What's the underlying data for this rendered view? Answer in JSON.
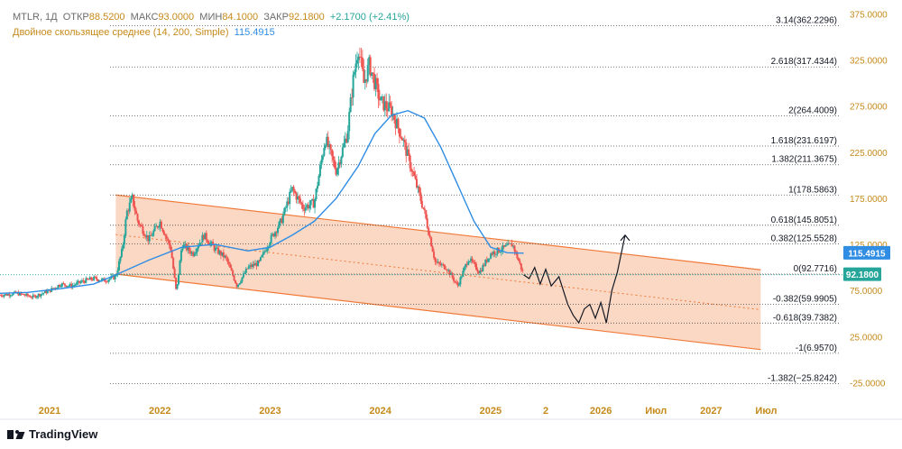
{
  "header": {
    "symbol": "MTLR, 1Д",
    "open_label": "ОТКР",
    "open": "88.5200",
    "high_label": "МАКС",
    "high": "93.0000",
    "low_label": "МИН",
    "low": "84.1000",
    "close_label": "ЗАКР",
    "close": "92.1800",
    "change": "+2.1700 (+2.41%)",
    "indicator": "Двойное скользящее среднее (14, 200, Simple)",
    "indicator_value": "115.4915"
  },
  "brand": "TradingView",
  "colors": {
    "up": "#26a69a",
    "down": "#ef5350",
    "ma": "#2f8de4",
    "channel_fill": "#f8cbb0",
    "channel_line": "#f07a3a",
    "axis_text": "#c58a1a",
    "price_badge": "#26a69a",
    "ma_badge": "#2f8de4"
  },
  "chart_data": {
    "type": "line",
    "title": "MTLR, 1Д",
    "ylim": [
      -45,
      390
    ],
    "y_ticks": [
      "375.0000",
      "325.0000",
      "275.0000",
      "225.0000",
      "175.0000",
      "125.0000",
      "75.0000",
      "25.0000",
      "-25.0000"
    ],
    "y_tick_values": [
      375,
      325,
      275,
      225,
      175,
      125,
      75,
      25,
      -25
    ],
    "x_ticks": [
      "2021",
      "2022",
      "2023",
      "2024",
      "2025",
      "2",
      "2026",
      "Июл",
      "2027",
      "Июл"
    ],
    "x_tick_years": [
      2021.0,
      2022.0,
      2023.0,
      2024.0,
      2025.0,
      2025.5,
      2026.0,
      2026.5,
      2027.0,
      2027.5
    ],
    "xlim": [
      2020.55,
      2028.2
    ],
    "fib_levels": [
      {
        "label": "3.14(362.2296)",
        "value": 362.2296
      },
      {
        "label": "2.618(317.4344)",
        "value": 317.4344
      },
      {
        "label": "2(264.4009)",
        "value": 264.4009
      },
      {
        "label": "1.618(231.6197)",
        "value": 231.6197
      },
      {
        "label": "1.382(211.3675)",
        "value": 211.3675
      },
      {
        "label": "1(178.5863)",
        "value": 178.5863
      },
      {
        "label": "0.618(145.8051)",
        "value": 145.8051
      },
      {
        "label": "0.382(125.5528)",
        "value": 125.5528
      },
      {
        "label": "0(92.7716)",
        "value": 92.7716
      },
      {
        "label": "-0.382(59.9905)",
        "value": 59.9905
      },
      {
        "label": "-0.618(39.7382)",
        "value": 39.7382
      },
      {
        "label": "-1(6.9570)",
        "value": 6.957
      },
      {
        "label": "-1.382(−25.8242)",
        "value": -25.8242
      }
    ],
    "channel": {
      "start_year": 2021.6,
      "end_year": 2027.45,
      "upper": [
        178.6,
        97.5
      ],
      "lower": [
        92.8,
        11.0
      ]
    },
    "price_series": {
      "name": "MTLR",
      "x": [
        2020.55,
        2020.7,
        2020.85,
        2021.0,
        2021.1,
        2021.2,
        2021.3,
        2021.4,
        2021.5,
        2021.6,
        2021.66,
        2021.7,
        2021.75,
        2021.8,
        2021.9,
        2022.0,
        2022.1,
        2022.15,
        2022.2,
        2022.3,
        2022.4,
        2022.5,
        2022.6,
        2022.7,
        2022.8,
        2022.9,
        2023.0,
        2023.1,
        2023.2,
        2023.3,
        2023.4,
        2023.5,
        2023.6,
        2023.7,
        2023.75,
        2023.8,
        2023.85,
        2023.9,
        2024.0,
        2024.1,
        2024.2,
        2024.3,
        2024.4,
        2024.5,
        2024.6,
        2024.7,
        2024.8,
        2024.9,
        2025.0,
        2025.1,
        2025.2,
        2025.3
      ],
      "values": [
        70,
        72,
        68,
        75,
        82,
        80,
        85,
        88,
        86,
        90,
        120,
        160,
        175,
        150,
        130,
        150,
        120,
        72,
        125,
        115,
        135,
        120,
        110,
        80,
        100,
        105,
        130,
        150,
        185,
        165,
        170,
        240,
        205,
        245,
        300,
        340,
        300,
        320,
        280,
        270,
        240,
        200,
        160,
        105,
        100,
        80,
        110,
        95,
        115,
        120,
        125,
        92
      ]
    },
    "ma_series": {
      "name": "SMA 200",
      "value_label": "115.4915",
      "x": [
        2020.55,
        2020.8,
        2021.1,
        2021.4,
        2021.6,
        2021.9,
        2022.2,
        2022.5,
        2022.8,
        2023.0,
        2023.2,
        2023.4,
        2023.6,
        2023.8,
        2023.95,
        2024.1,
        2024.25,
        2024.4,
        2024.55,
        2024.7,
        2024.85,
        2025.0,
        2025.15,
        2025.3
      ],
      "values": [
        72,
        73,
        77,
        82,
        92,
        108,
        122,
        125,
        118,
        122,
        135,
        150,
        175,
        210,
        245,
        265,
        270,
        262,
        230,
        190,
        150,
        122,
        116,
        115.4915
      ]
    },
    "projection_series": {
      "name": "forecast path",
      "x": [
        2025.3,
        2025.35,
        2025.4,
        2025.45,
        2025.5,
        2025.55,
        2025.62,
        2025.7,
        2025.75,
        2025.8,
        2025.85,
        2025.9,
        2025.95,
        2026.0,
        2026.05,
        2026.1,
        2026.15,
        2026.22
      ],
      "values": [
        92,
        88,
        100,
        82,
        98,
        80,
        90,
        60,
        48,
        40,
        55,
        60,
        45,
        62,
        40,
        75,
        95,
        135
      ]
    },
    "last_price": 92.18,
    "last_price_label": "92.1800",
    "ma_last_label": "115.4915"
  }
}
